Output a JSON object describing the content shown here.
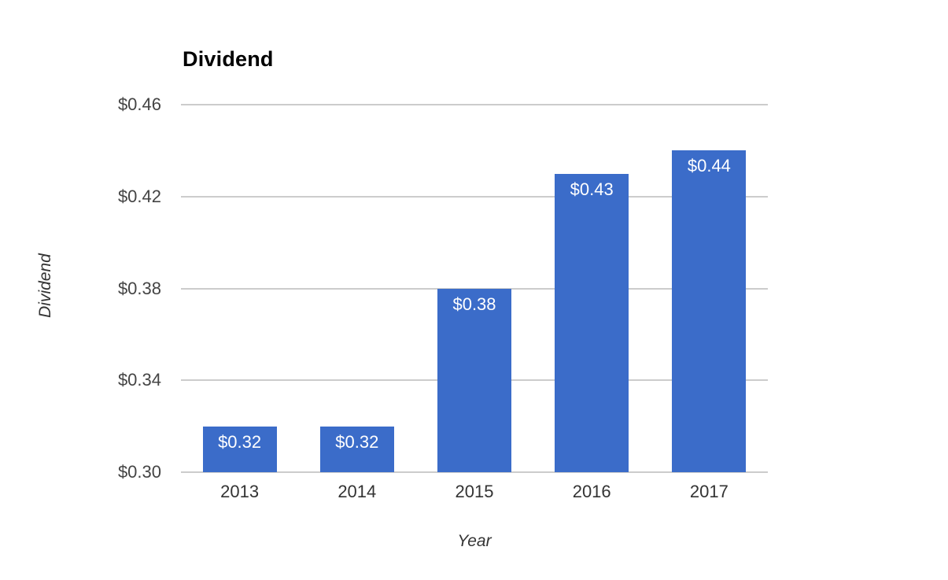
{
  "chart_data": {
    "type": "bar",
    "title": "Dividend",
    "xlabel": "Year",
    "ylabel": "Dividend",
    "categories": [
      "2013",
      "2014",
      "2015",
      "2016",
      "2017"
    ],
    "values": [
      0.32,
      0.32,
      0.38,
      0.43,
      0.44
    ],
    "bar_labels": [
      "$0.32",
      "$0.32",
      "$0.38",
      "$0.43",
      "$0.44"
    ],
    "ylim": [
      0.3,
      0.46
    ],
    "yticks": [
      0.3,
      0.34,
      0.38,
      0.42,
      0.46
    ],
    "ytick_labels": [
      "$0.30",
      "$0.34",
      "$0.38",
      "$0.42",
      "$0.46"
    ],
    "grid": true,
    "legend": "none",
    "colors": {
      "bar": "#3b6cc9",
      "bar_label_text": "#ffffff",
      "gridline": "#cccccc",
      "ytick_text": "#444444",
      "xtick_text": "#333333",
      "axis_title_text": "#333333",
      "title_text": "#000000",
      "background": "#ffffff"
    }
  }
}
